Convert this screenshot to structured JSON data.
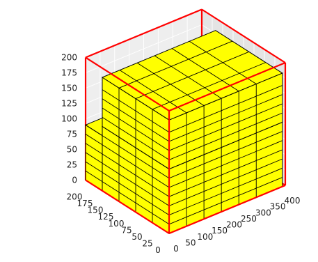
{
  "chart_data": {
    "type": "3d-bar",
    "title": "",
    "xlabel": "",
    "ylabel": "",
    "zlabel": "",
    "x_ticks": [
      0,
      50,
      100,
      150,
      200,
      250,
      300,
      350,
      400
    ],
    "y_ticks": [
      0,
      25,
      50,
      75,
      100,
      125,
      150,
      175,
      200
    ],
    "z_ticks": [
      0,
      25,
      50,
      75,
      100,
      125,
      150,
      175,
      200
    ],
    "xlim": [
      0,
      400
    ],
    "ylim": [
      0,
      200
    ],
    "zlim": [
      0,
      200
    ],
    "grid": true,
    "container": {
      "x": [
        0,
        400
      ],
      "y": [
        0,
        200
      ],
      "z": [
        0,
        200
      ],
      "color": "#ff0000"
    },
    "box_color": "#ffff00",
    "edge_color": "#000000",
    "boxes": [
      {
        "x": [
          0,
          390
        ],
        "y": [
          0,
          160
        ],
        "z": [
          0,
          105
        ]
      },
      {
        "x": [
          0,
          390
        ],
        "y": [
          160,
          200
        ],
        "z": [
          0,
          90
        ]
      },
      {
        "x": [
          0,
          390
        ],
        "y": [
          0,
          160
        ],
        "z": [
          105,
          185
        ]
      }
    ],
    "x_grid": [
      0,
      60,
      120,
      180,
      240,
      300,
      390
    ],
    "y_grid": [
      0,
      40,
      80,
      120,
      160
    ],
    "z_grid_lower": [
      0,
      15,
      30,
      45,
      60,
      75,
      90,
      105
    ],
    "z_grid_upper": [
      105,
      120,
      135,
      150,
      165,
      185
    ],
    "y_grid_slab": [
      160,
      200
    ],
    "z_grid_slab": [
      0,
      15,
      30,
      45,
      60,
      75,
      90
    ]
  }
}
